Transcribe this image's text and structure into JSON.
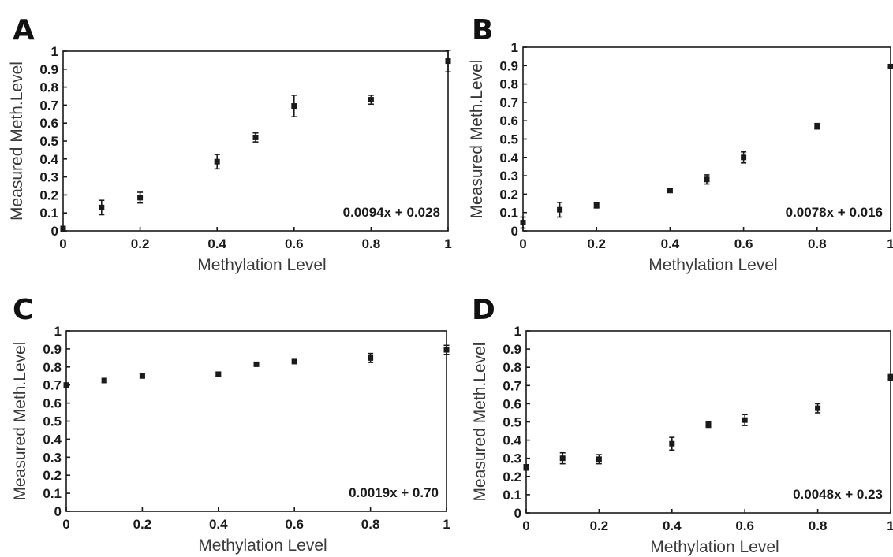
{
  "chart_data": [
    {
      "type": "scatter",
      "panel_label": "A",
      "title": "",
      "xlabel": "Methylation Level",
      "ylabel": "Measured Meth.Level",
      "xlim": [
        0,
        1
      ],
      "ylim": [
        0,
        1
      ],
      "x_ticks": [
        "0",
        "0.2",
        "0.4",
        "0.6",
        "0.8",
        "1"
      ],
      "y_ticks": [
        "0",
        "0.1",
        "0.2",
        "0.3",
        "0.4",
        "0.5",
        "0.6",
        "0.7",
        "0.8",
        "0.9",
        "1"
      ],
      "annotation": "0.0094x + 0.028",
      "grid": false,
      "points": [
        {
          "x": 0,
          "y": 0.01,
          "err": 0.015
        },
        {
          "x": 0.1,
          "y": 0.13,
          "err": 0.04
        },
        {
          "x": 0.2,
          "y": 0.185,
          "err": 0.03
        },
        {
          "x": 0.4,
          "y": 0.385,
          "err": 0.04
        },
        {
          "x": 0.5,
          "y": 0.52,
          "err": 0.025
        },
        {
          "x": 0.6,
          "y": 0.695,
          "err": 0.06
        },
        {
          "x": 0.8,
          "y": 0.73,
          "err": 0.025
        },
        {
          "x": 1,
          "y": 0.945,
          "err": 0.06
        }
      ]
    },
    {
      "type": "scatter",
      "panel_label": "B",
      "title": "",
      "xlabel": "Methylation Level",
      "ylabel": "Measured Meth.Level",
      "xlim": [
        0,
        1
      ],
      "ylim": [
        0,
        1
      ],
      "x_ticks": [
        "0",
        "0.2",
        "0.4",
        "0.6",
        "0.8",
        "1"
      ],
      "y_ticks": [
        "0",
        "0.1",
        "0.2",
        "0.3",
        "0.4",
        "0.5",
        "0.6",
        "0.7",
        "0.8",
        "0.9",
        "1"
      ],
      "annotation": "0.0078x + 0.016",
      "grid": false,
      "points": [
        {
          "x": 0,
          "y": 0.045,
          "err": 0.03
        },
        {
          "x": 0.1,
          "y": 0.115,
          "err": 0.04
        },
        {
          "x": 0.2,
          "y": 0.14,
          "err": 0.015
        },
        {
          "x": 0.4,
          "y": 0.22,
          "err": 0.01
        },
        {
          "x": 0.5,
          "y": 0.28,
          "err": 0.025
        },
        {
          "x": 0.6,
          "y": 0.4,
          "err": 0.03
        },
        {
          "x": 0.8,
          "y": 0.57,
          "err": 0.015
        },
        {
          "x": 1,
          "y": 0.895,
          "err": 0.01
        }
      ]
    },
    {
      "type": "scatter",
      "panel_label": "C",
      "title": "",
      "xlabel": "Methylation Level",
      "ylabel": "Measured Meth.Level",
      "xlim": [
        0,
        1
      ],
      "ylim": [
        0,
        1
      ],
      "x_ticks": [
        "0",
        "0.2",
        "0.4",
        "0.6",
        "0.8",
        "1"
      ],
      "y_ticks": [
        "0",
        "0.1",
        "0.2",
        "0.3",
        "0.4",
        "0.5",
        "0.6",
        "0.7",
        "0.8",
        "0.9",
        "1"
      ],
      "annotation": "0.0019x + 0.70",
      "grid": false,
      "points": [
        {
          "x": 0,
          "y": 0.7,
          "err": 0.01
        },
        {
          "x": 0.1,
          "y": 0.725,
          "err": 0.01
        },
        {
          "x": 0.2,
          "y": 0.75,
          "err": 0.01
        },
        {
          "x": 0.4,
          "y": 0.76,
          "err": 0.01
        },
        {
          "x": 0.5,
          "y": 0.815,
          "err": 0.01
        },
        {
          "x": 0.6,
          "y": 0.83,
          "err": 0.01
        },
        {
          "x": 0.8,
          "y": 0.85,
          "err": 0.025
        },
        {
          "x": 1,
          "y": 0.895,
          "err": 0.025
        }
      ]
    },
    {
      "type": "scatter",
      "panel_label": "D",
      "title": "",
      "xlabel": "Methylation Level",
      "ylabel": "Measured Meth.Level",
      "xlim": [
        0,
        1
      ],
      "ylim": [
        0,
        1
      ],
      "x_ticks": [
        "0",
        "0.2",
        "0.4",
        "0.6",
        "0.8",
        "1"
      ],
      "y_ticks": [
        "0",
        "0.1",
        "0.2",
        "0.3",
        "0.4",
        "0.5",
        "0.6",
        "0.7",
        "0.8",
        "0.9",
        "1"
      ],
      "annotation": "0.0048x + 0.23",
      "grid": false,
      "points": [
        {
          "x": 0,
          "y": 0.25,
          "err": 0.015
        },
        {
          "x": 0.1,
          "y": 0.3,
          "err": 0.03
        },
        {
          "x": 0.2,
          "y": 0.295,
          "err": 0.025
        },
        {
          "x": 0.4,
          "y": 0.38,
          "err": 0.035
        },
        {
          "x": 0.5,
          "y": 0.485,
          "err": 0.015
        },
        {
          "x": 0.6,
          "y": 0.51,
          "err": 0.03
        },
        {
          "x": 0.8,
          "y": 0.575,
          "err": 0.025
        },
        {
          "x": 1,
          "y": 0.745,
          "err": 0.015
        }
      ]
    }
  ]
}
